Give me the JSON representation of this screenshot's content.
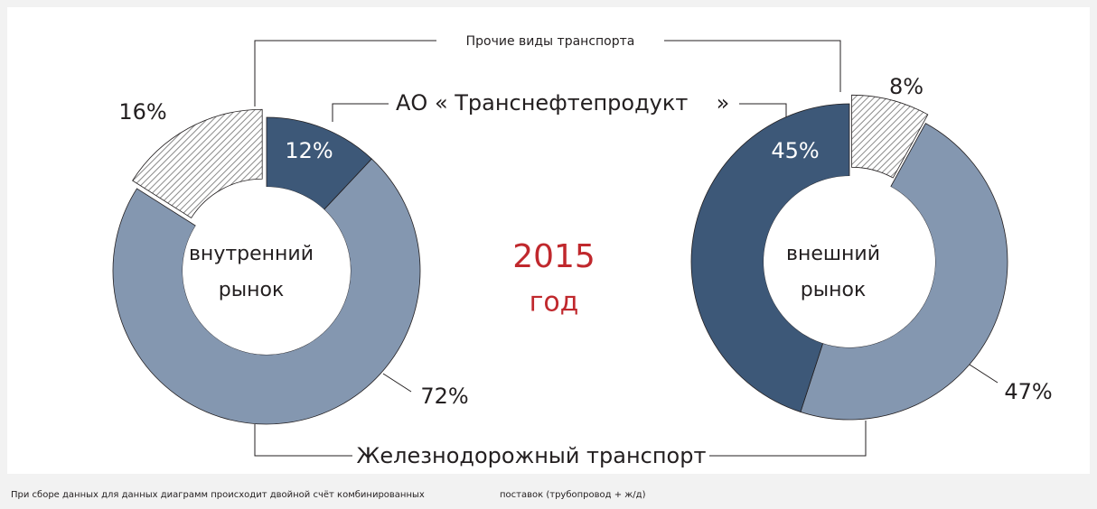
{
  "chart_data": [
    {
      "type": "pie",
      "donut": true,
      "center_label": [
        "внутренний",
        "рынок"
      ],
      "values": [
        12,
        72,
        16
      ],
      "value_labels": [
        "12%",
        "72%",
        "16%"
      ],
      "colors": [
        "#3d5878",
        "#8497b0",
        "#ffffff"
      ],
      "hatched": [
        false,
        false,
        true
      ],
      "exploded": [
        false,
        false,
        true
      ]
    },
    {
      "type": "pie",
      "donut": true,
      "center_label": [
        "внешний",
        "рынок"
      ],
      "values": [
        8,
        47,
        45
      ],
      "value_labels": [
        "8%",
        "47%",
        "45%"
      ],
      "colors": [
        "#ffffff",
        "#8497b0",
        "#3d5878"
      ],
      "hatched": [
        true,
        false,
        false
      ],
      "exploded": [
        true,
        false,
        false
      ]
    }
  ],
  "labels": {
    "other": "Прочие виды транспорта",
    "pipeline_a": "АО « Транснефтепродукт",
    "pipeline_b": "»",
    "rail": "Железнодорожный транспорт",
    "year": "2015",
    "year_word": "год"
  },
  "footnote": [
    "При сборе данных для данных диаграмм происходит двойной счёт комбинированных",
    "поставок  (трубопровод    + ж/д)"
  ]
}
